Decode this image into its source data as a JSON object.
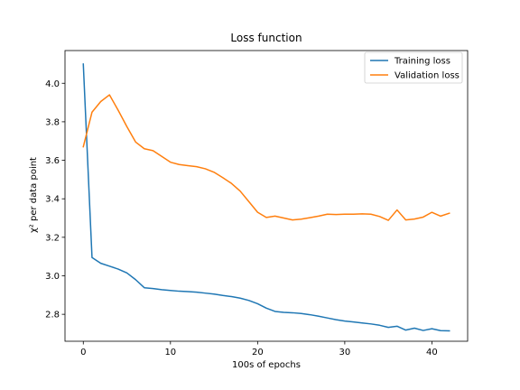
{
  "chart_data": {
    "type": "line",
    "title": "Loss function",
    "xlabel": "100s of epochs",
    "ylabel": "χ² per data point",
    "xlim": [
      -2.1,
      44.1
    ],
    "ylim": [
      2.66,
      4.17
    ],
    "xticks": [
      0,
      10,
      20,
      30,
      40
    ],
    "yticks": [
      2.8,
      3.0,
      3.2,
      3.4,
      3.6,
      3.8,
      4.0
    ],
    "grid": false,
    "legend_position": "top-right",
    "x": [
      0,
      1,
      2,
      3,
      4,
      5,
      6,
      7,
      8,
      9,
      10,
      11,
      12,
      13,
      14,
      15,
      16,
      17,
      18,
      19,
      20,
      21,
      22,
      23,
      24,
      25,
      26,
      27,
      28,
      29,
      30,
      31,
      32,
      33,
      34,
      35,
      36,
      37,
      38,
      39,
      40,
      41,
      42
    ],
    "series": [
      {
        "name": "Training loss",
        "color": "#1f77b4",
        "values": [
          4.1,
          3.095,
          3.065,
          3.05,
          3.035,
          3.015,
          2.98,
          2.938,
          2.934,
          2.928,
          2.924,
          2.92,
          2.918,
          2.915,
          2.91,
          2.905,
          2.898,
          2.892,
          2.884,
          2.872,
          2.855,
          2.832,
          2.815,
          2.81,
          2.808,
          2.804,
          2.798,
          2.79,
          2.781,
          2.772,
          2.765,
          2.76,
          2.755,
          2.75,
          2.743,
          2.732,
          2.738,
          2.718,
          2.728,
          2.716,
          2.725,
          2.715,
          2.714
        ]
      },
      {
        "name": "Validation loss",
        "color": "#ff7f0e",
        "values": [
          3.67,
          3.85,
          3.905,
          3.94,
          3.86,
          3.775,
          3.695,
          3.66,
          3.65,
          3.62,
          3.59,
          3.578,
          3.572,
          3.567,
          3.556,
          3.538,
          3.51,
          3.48,
          3.44,
          3.385,
          3.33,
          3.303,
          3.31,
          3.3,
          3.29,
          3.294,
          3.302,
          3.31,
          3.32,
          3.318,
          3.32,
          3.32,
          3.322,
          3.32,
          3.308,
          3.288,
          3.342,
          3.29,
          3.295,
          3.305,
          3.33,
          3.31,
          3.325
        ]
      }
    ]
  }
}
